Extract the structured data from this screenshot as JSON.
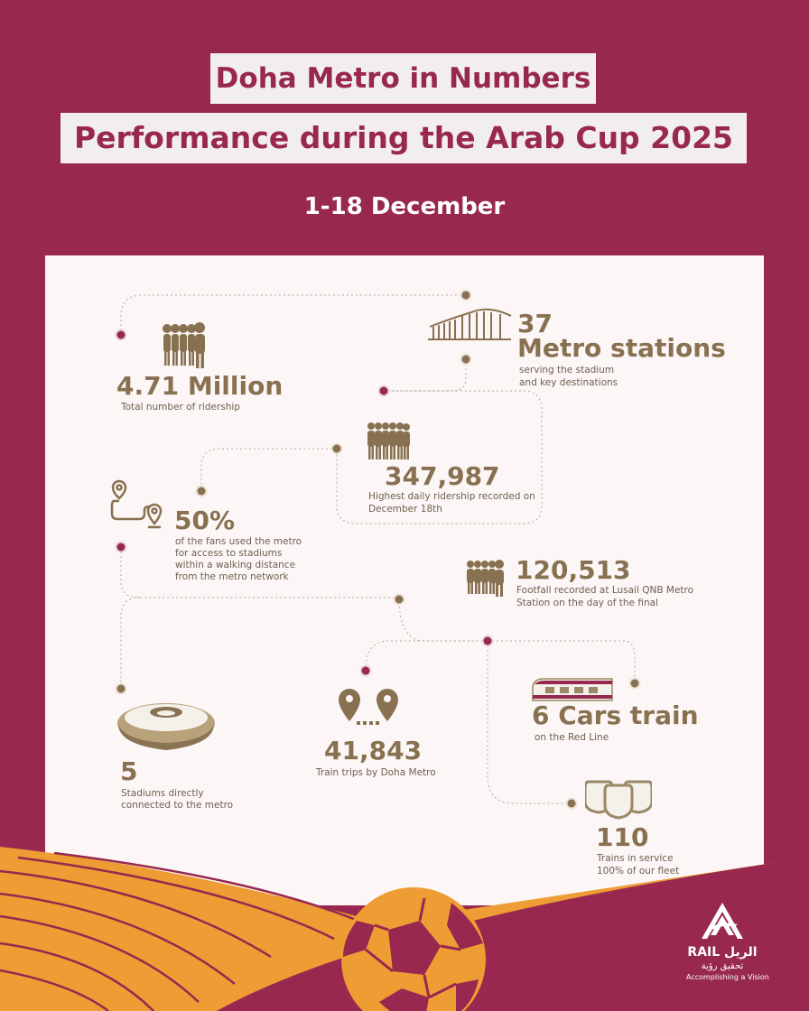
{
  "header": {
    "title_line1": "Doha Metro in Numbers",
    "title_line2": "Performance during the Arab Cup 2025",
    "date_range": "1-18 December"
  },
  "stats": {
    "ridership": {
      "value": "4.71 Million",
      "desc": "Total number of ridership"
    },
    "stations": {
      "value_num": "37",
      "value_label": "Metro stations",
      "desc_line1": "serving the stadium",
      "desc_line2": "and key destinations"
    },
    "daily": {
      "value": "347,987",
      "desc_line1": "Highest daily ridership recorded on",
      "desc_line2": "December 18th"
    },
    "fans": {
      "value": "50%",
      "desc_line1": "of the fans used the metro",
      "desc_line2": "for access to stadiums",
      "desc_line3": "within a walking distance",
      "desc_line4": "from the metro network"
    },
    "footfall": {
      "value": "120,513",
      "desc_line1": "Footfall recorded at Lusail QNB Metro",
      "desc_line2": "Station on the day of the final"
    },
    "stadiums": {
      "value": "5",
      "desc_line1": "Stadiums directly",
      "desc_line2": "connected to the metro"
    },
    "trips": {
      "value": "41,843",
      "desc": "Train trips by Doha Metro"
    },
    "cars": {
      "value": "6 Cars train",
      "desc": "on the Red Line"
    },
    "trains": {
      "value": "110",
      "desc_line1": "Trains in service",
      "desc_line2": "100%  of our fleet"
    }
  },
  "logo": {
    "brand_ar": "الريل",
    "brand_en": "RAIL",
    "tagline_ar": "تحقيق رؤية",
    "tagline_en": "Accomplishing a Vision"
  },
  "colors": {
    "background": "#98284f",
    "panel": "#fcf6f6",
    "gold": "#887150",
    "orange": "#ee9c34"
  }
}
